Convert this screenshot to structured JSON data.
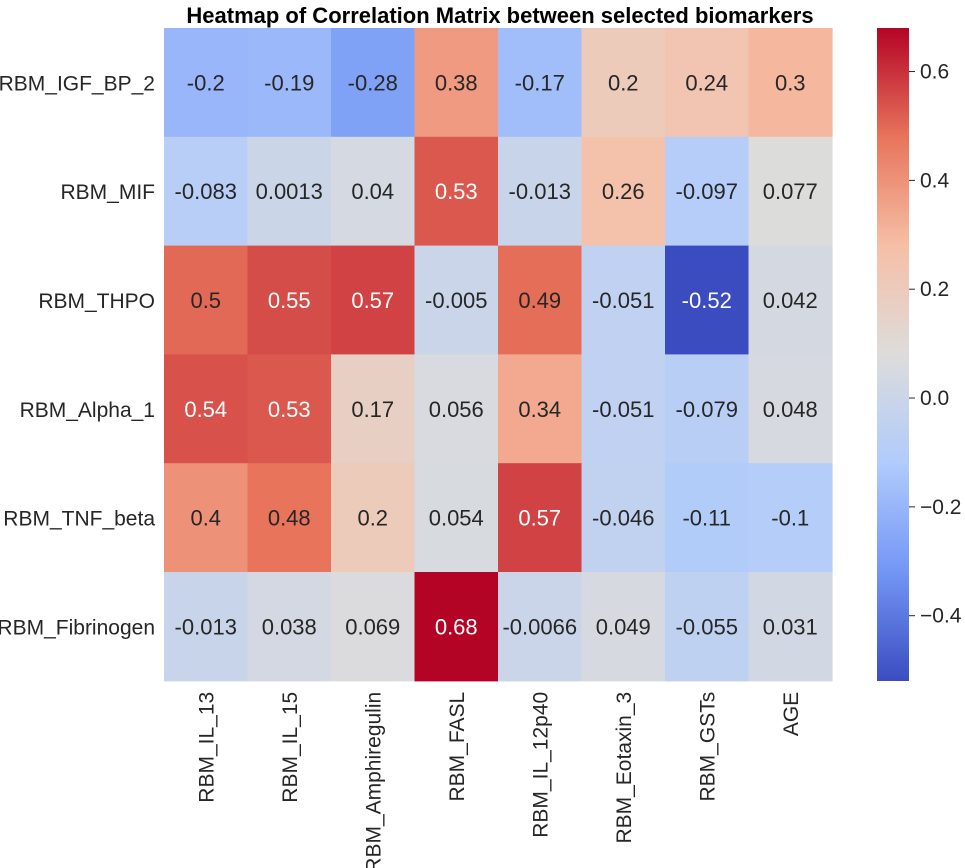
{
  "chart_data": {
    "type": "heatmap",
    "title": "Heatmap of Correlation Matrix between selected biomarkers",
    "xlabel": "",
    "ylabel": "",
    "rows": [
      "RBM_IGF_BP_2",
      "RBM_MIF",
      "RBM_THPO",
      "RBM_Alpha_1",
      "RBM_TNF_beta",
      "RBM_Fibrinogen"
    ],
    "columns": [
      "RBM_IL_13",
      "RBM_IL_15",
      "RBM_Amphiregulin",
      "RBM_FASL",
      "RBM_IL_12p40",
      "RBM_Eotaxin_3",
      "RBM_GSTs",
      "AGE"
    ],
    "values": [
      [
        -0.2,
        -0.19,
        -0.28,
        0.38,
        -0.17,
        0.2,
        0.24,
        0.3
      ],
      [
        -0.083,
        0.0013,
        0.04,
        0.53,
        -0.013,
        0.26,
        -0.097,
        0.077
      ],
      [
        0.5,
        0.55,
        0.57,
        -0.005,
        0.49,
        -0.051,
        -0.52,
        0.042
      ],
      [
        0.54,
        0.53,
        0.17,
        0.056,
        0.34,
        -0.051,
        -0.079,
        0.048
      ],
      [
        0.4,
        0.48,
        0.2,
        0.054,
        0.57,
        -0.046,
        -0.11,
        -0.1
      ],
      [
        -0.013,
        0.038,
        0.069,
        0.68,
        -0.0066,
        0.049,
        -0.055,
        0.031
      ]
    ],
    "annotations": [
      [
        "-0.2",
        "-0.19",
        "-0.28",
        "0.38",
        "-0.17",
        "0.2",
        "0.24",
        "0.3"
      ],
      [
        "-0.083",
        "0.0013",
        "0.04",
        "0.53",
        "-0.013",
        "0.26",
        "-0.097",
        "0.077"
      ],
      [
        "0.5",
        "0.55",
        "0.57",
        "-0.005",
        "0.49",
        "-0.051",
        "-0.52",
        "0.042"
      ],
      [
        "0.54",
        "0.53",
        "0.17",
        "0.056",
        "0.34",
        "-0.051",
        "-0.079",
        "0.048"
      ],
      [
        "0.4",
        "0.48",
        "0.2",
        "0.054",
        "0.57",
        "-0.046",
        "-0.11",
        "-0.1"
      ],
      [
        "-0.013",
        "0.038",
        "0.069",
        "0.68",
        "-0.0066",
        "0.049",
        "-0.055",
        "0.031"
      ]
    ],
    "colormap": "coolwarm",
    "colormap_stops": [
      "#3b4cc0",
      "#7396f5",
      "#b0cbfc",
      "#dddcdb",
      "#f6bfa6",
      "#e7745b",
      "#b40426"
    ],
    "vmin": -0.52,
    "vmax": 0.68,
    "colorbar": {
      "ticks": [
        -0.4,
        -0.2,
        0.0,
        0.2,
        0.4,
        0.6
      ],
      "tick_labels": [
        "−0.4",
        "−0.2",
        "0.0",
        "0.2",
        "0.4",
        "0.6"
      ],
      "position": "right"
    },
    "legend": "none",
    "grid": false
  }
}
